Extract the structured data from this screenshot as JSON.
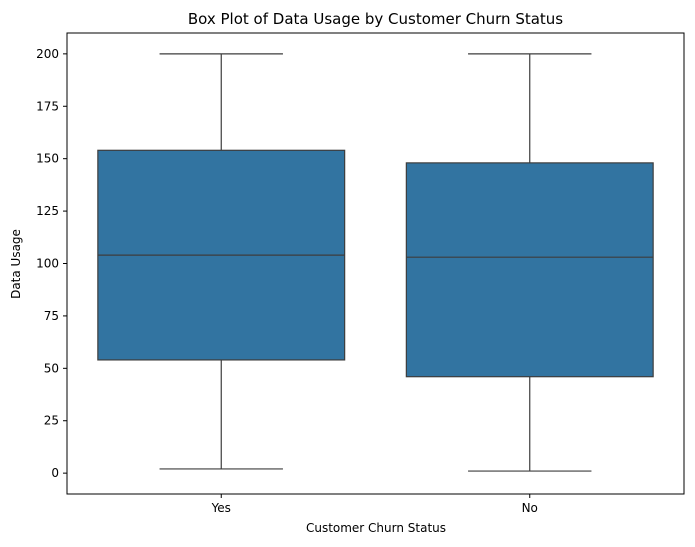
{
  "chart_data": {
    "type": "box",
    "title": "Box Plot of Data Usage by Customer Churn Status",
    "xlabel": "Customer Churn Status",
    "ylabel": "Data Usage",
    "categories": [
      "Yes",
      "No"
    ],
    "boxes": [
      {
        "category": "Yes",
        "whisker_low": 2,
        "q1": 54,
        "median": 104,
        "q3": 154,
        "whisker_high": 200
      },
      {
        "category": "No",
        "whisker_low": 1,
        "q1": 46,
        "median": 103,
        "q3": 148,
        "whisker_high": 200
      }
    ],
    "ylim": [
      -9.95,
      209.95
    ],
    "yticks": [
      0,
      25,
      50,
      75,
      100,
      125,
      150,
      175,
      200
    ],
    "grid": false,
    "colors": {
      "box_fill": "#3274a1",
      "line": "#3d3d3d"
    }
  }
}
